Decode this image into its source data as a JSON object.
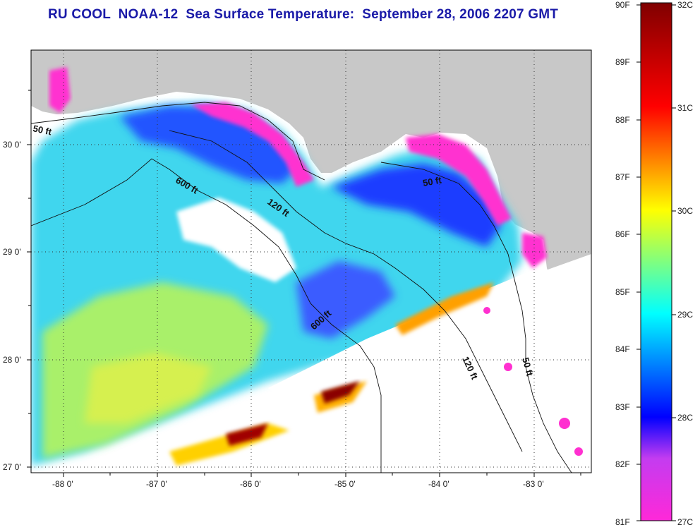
{
  "title": "RU COOL  NOAA-12  Sea Surface Temperature:  September 28, 2006 2207 GMT",
  "map": {
    "lon_ticks": [
      "-88 0'",
      "-87 0'",
      "-86 0'",
      "-85 0'",
      "-84 0'",
      "-83 0'"
    ],
    "lat_ticks": [
      "30 0'",
      "29 0'",
      "28 0'",
      "27 0'"
    ],
    "contour_labels": [
      "50 ft",
      "600 ft",
      "120 ft",
      "50 ft",
      "600 ft",
      "120 ft",
      "50 ft"
    ],
    "land_color": "#c8c8c8",
    "cloud_color": "#ffffff"
  },
  "colorbar": {
    "f_labels": [
      "90F",
      "89F",
      "88F",
      "87F",
      "86F",
      "85F",
      "84F",
      "83F",
      "82F",
      "81F"
    ],
    "c_labels": [
      "32C",
      "31C",
      "30C",
      "29C",
      "28C",
      "27C"
    ],
    "colors": [
      "#ff28d8",
      "#0000ff",
      "#00ffff",
      "#ffff00",
      "#ff0000",
      "#800000"
    ]
  }
}
